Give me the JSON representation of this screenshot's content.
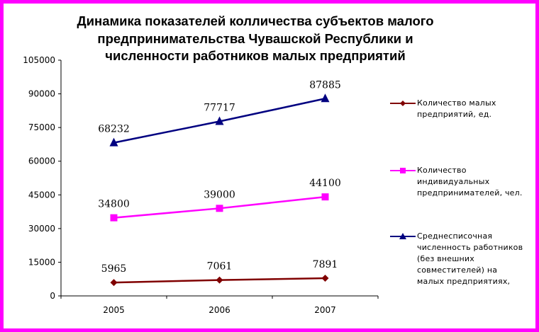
{
  "chart_data": {
    "type": "line",
    "title_lines": [
      "Динамика показателей колличества субъектов малого",
      "предпринимательства Чувашской Республики и",
      "численности работников малых предприятий"
    ],
    "categories": [
      "2005",
      "2006",
      "2007"
    ],
    "ylim": [
      0,
      105000
    ],
    "yticks": [
      "0",
      "15000",
      "30000",
      "45000",
      "60000",
      "75000",
      "90000",
      "105000"
    ],
    "grid": false,
    "legend_position": "right",
    "series": [
      {
        "name_lines": [
          "Количество малых",
          "предприятий, ед."
        ],
        "values": [
          5965,
          7061,
          7891
        ],
        "labels": [
          "5965",
          "7061",
          "7891"
        ],
        "color": "#800000",
        "marker": "diamond"
      },
      {
        "name_lines": [
          "Количество",
          "индивидуальных",
          "предпринимателей, чел."
        ],
        "values": [
          34800,
          39000,
          44100
        ],
        "labels": [
          "34800",
          "39000",
          "44100"
        ],
        "color": "#ff00ff",
        "marker": "square"
      },
      {
        "name_lines": [
          "Среднесписочная",
          "численность работников",
          "(без внешних",
          "совместителей) на",
          "малых предприятиях,"
        ],
        "values": [
          68232,
          77717,
          87885
        ],
        "labels": [
          "68232",
          "77717",
          "87885"
        ],
        "color": "#000080",
        "marker": "triangle"
      }
    ]
  }
}
